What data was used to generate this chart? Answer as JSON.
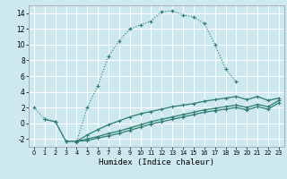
{
  "xlabel": "Humidex (Indice chaleur)",
  "bg_color": "#cde8ef",
  "grid_color": "#ffffff",
  "line_color": "#2e7d6e",
  "xlim": [
    -0.5,
    23.5
  ],
  "ylim": [
    -3.0,
    15.0
  ],
  "xticks": [
    0,
    1,
    2,
    3,
    4,
    5,
    6,
    7,
    8,
    9,
    10,
    11,
    12,
    13,
    14,
    15,
    16,
    17,
    18,
    19,
    20,
    21,
    22,
    23
  ],
  "yticks": [
    -2,
    0,
    2,
    4,
    6,
    8,
    10,
    12,
    14
  ],
  "curve1_x": [
    0,
    1,
    2,
    3,
    4,
    5,
    6,
    7,
    8,
    9,
    10,
    11,
    12,
    13,
    14,
    15,
    16,
    17,
    18,
    19
  ],
  "curve1_y": [
    2.0,
    0.5,
    0.2,
    -2.3,
    -2.4,
    2.0,
    4.8,
    8.5,
    10.5,
    12.0,
    12.5,
    13.0,
    14.2,
    14.3,
    13.8,
    13.5,
    12.7,
    10.0,
    6.9,
    5.3
  ],
  "curve2_x": [
    1,
    2,
    3,
    4,
    5,
    6,
    7,
    8,
    9,
    10,
    11,
    12,
    13,
    14,
    15,
    16,
    17,
    18,
    19,
    20,
    21,
    22,
    23
  ],
  "curve2_y": [
    0.5,
    0.2,
    -2.3,
    -2.3,
    -1.5,
    -0.8,
    -0.2,
    0.3,
    0.8,
    1.2,
    1.5,
    1.8,
    2.1,
    2.3,
    2.5,
    2.8,
    3.0,
    3.2,
    3.4,
    3.0,
    3.4,
    2.9,
    3.2
  ],
  "curve3_x": [
    4,
    5,
    6,
    7,
    8,
    9,
    10,
    11,
    12,
    13,
    14,
    15,
    16,
    17,
    18,
    19,
    20,
    21,
    22,
    23
  ],
  "curve3_y": [
    -2.3,
    -2.0,
    -1.7,
    -1.3,
    -1.0,
    -0.6,
    -0.2,
    0.2,
    0.5,
    0.8,
    1.1,
    1.4,
    1.7,
    1.9,
    2.1,
    2.3,
    2.0,
    2.4,
    2.1,
    2.9
  ],
  "curve4_x": [
    4,
    5,
    6,
    7,
    8,
    9,
    10,
    11,
    12,
    13,
    14,
    15,
    16,
    17,
    18,
    19,
    20,
    21,
    22,
    23
  ],
  "curve4_y": [
    -2.3,
    -2.2,
    -1.9,
    -1.6,
    -1.3,
    -0.9,
    -0.5,
    -0.1,
    0.2,
    0.5,
    0.8,
    1.1,
    1.4,
    1.6,
    1.8,
    2.0,
    1.7,
    2.1,
    1.8,
    2.6
  ]
}
